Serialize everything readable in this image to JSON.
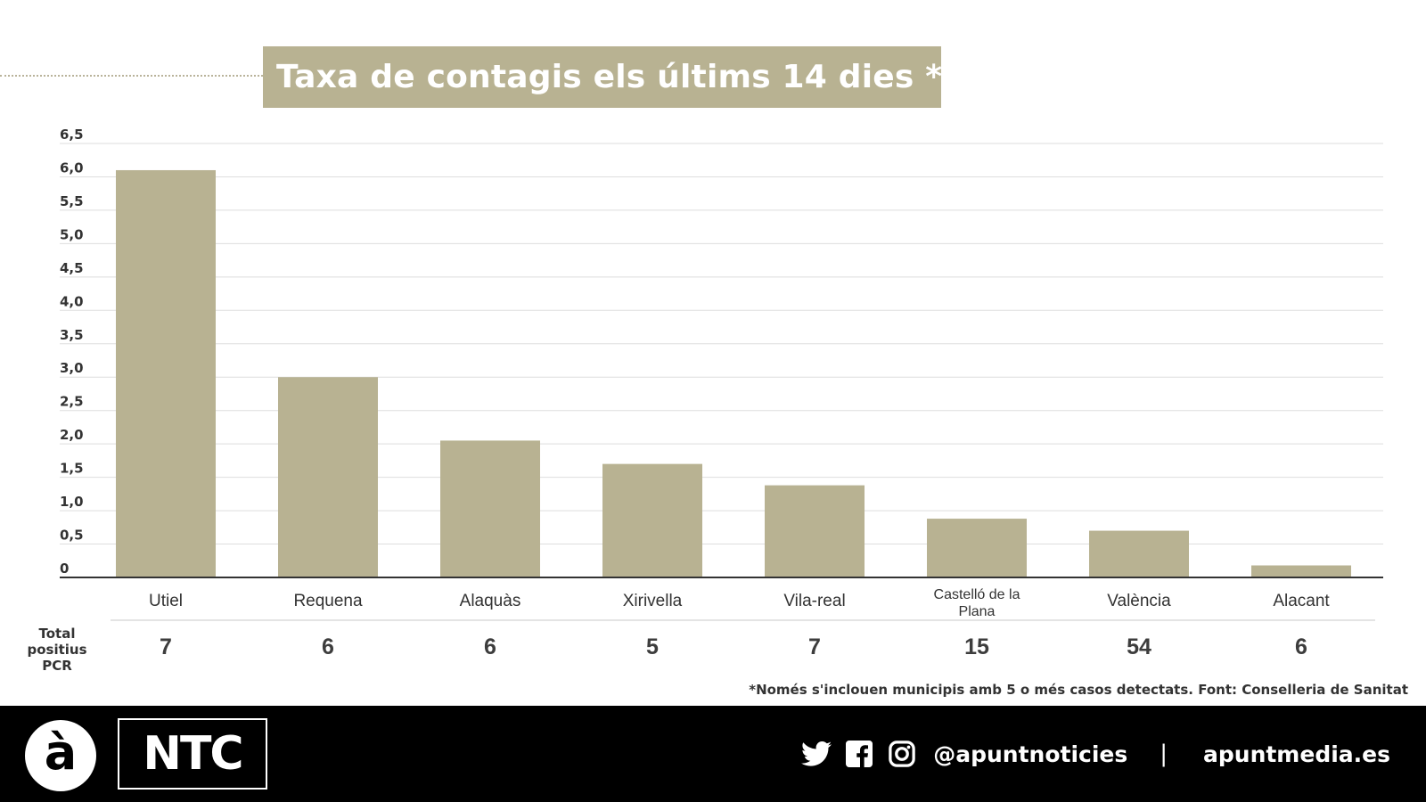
{
  "header": {
    "title": "Taxa de contagis els últims 14 dies *"
  },
  "chart_data": {
    "type": "bar",
    "title": "Taxa de contagis els últims 14 dies *",
    "categories": [
      "Utiel",
      "Requena",
      "Alaquàs",
      "Xirivella",
      "Vila-real",
      "Castelló de la Plana",
      "València",
      "Alacant"
    ],
    "series": [
      {
        "values": [
          6.1,
          3.0,
          2.05,
          1.7,
          1.38,
          0.88,
          0.7,
          0.18
        ]
      }
    ],
    "ylim": [
      0,
      6.5
    ],
    "yticks": [
      "0",
      "0,5",
      "1,0",
      "1,5",
      "2,0",
      "2,5",
      "3,0",
      "3,5",
      "4,0",
      "4,5",
      "5,0",
      "5,5",
      "6,0",
      "6,5"
    ],
    "grid": true,
    "bar_color": "#b8b292"
  },
  "pcr_row": {
    "label_lines": [
      "Total",
      "positius",
      "PCR"
    ],
    "values": [
      "7",
      "6",
      "6",
      "5",
      "7",
      "15",
      "54",
      "6"
    ]
  },
  "footnote": "*Només s'inclouen municipis amb 5 o més casos detectats. Font: Conselleria de Sanitat",
  "footer": {
    "logo_letter": "à",
    "logo_text": "NTC",
    "icons": [
      "twitter-icon",
      "facebook-icon",
      "instagram-icon"
    ],
    "handle": "@apuntnoticies",
    "separator": "|",
    "website": "apuntmedia.es"
  },
  "colors": {
    "accent": "#b8b292",
    "text": "#333333",
    "footer_bg": "#000000"
  }
}
